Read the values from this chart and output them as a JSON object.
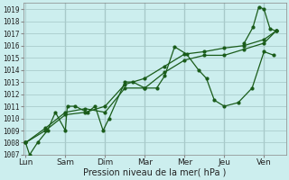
{
  "background_color": "#cceeee",
  "grid_color": "#aacccc",
  "line_color": "#1a5c1a",
  "marker_color": "#1a5c1a",
  "xlabel": "Pression niveau de la mer( hPa )",
  "ylim": [
    1007,
    1019.5
  ],
  "yticks": [
    1007,
    1008,
    1009,
    1010,
    1011,
    1012,
    1013,
    1014,
    1015,
    1016,
    1017,
    1018,
    1019
  ],
  "day_labels": [
    "Lun",
    "Sam",
    "Dim",
    "Mar",
    "Mer",
    "Jeu",
    "Ven"
  ],
  "day_positions": [
    0,
    1,
    2,
    3,
    4,
    5,
    6
  ],
  "series": [
    {
      "x": [
        0.0,
        0.1,
        0.3,
        0.55,
        0.75,
        1.0,
        1.05,
        1.25,
        1.55,
        1.75,
        1.95,
        2.1,
        2.5,
        2.7,
        3.0,
        3.3,
        3.5,
        3.75,
        4.05,
        4.35,
        4.55,
        4.75,
        5.0,
        5.35,
        5.7,
        6.0,
        6.25
      ],
      "y": [
        1008.0,
        1007.0,
        1008.0,
        1009.0,
        1010.5,
        1009.0,
        1011.0,
        1011.0,
        1010.5,
        1011.0,
        1009.0,
        1010.0,
        1013.0,
        1013.0,
        1012.5,
        1012.5,
        1013.5,
        1015.9,
        1015.3,
        1014.0,
        1013.3,
        1011.5,
        1011.0,
        1011.3,
        1012.5,
        1015.5,
        1015.2
      ]
    },
    {
      "x": [
        0.0,
        0.5,
        1.0,
        1.5,
        2.0,
        2.5,
        3.0,
        3.5,
        4.0,
        4.5,
        5.0,
        5.5,
        6.0,
        6.3
      ],
      "y": [
        1008.0,
        1009.2,
        1010.5,
        1010.8,
        1010.5,
        1012.5,
        1012.5,
        1013.8,
        1014.8,
        1015.2,
        1015.2,
        1015.7,
        1016.2,
        1017.2
      ]
    },
    {
      "x": [
        0.0,
        0.5,
        1.0,
        1.5,
        2.0,
        2.5,
        3.0,
        3.5,
        4.0,
        4.5,
        5.0,
        5.5,
        6.0,
        6.3
      ],
      "y": [
        1008.0,
        1009.0,
        1010.3,
        1010.5,
        1011.0,
        1012.8,
        1013.3,
        1014.3,
        1015.3,
        1015.5,
        1015.8,
        1016.0,
        1016.5,
        1017.2
      ]
    },
    {
      "x": [
        5.5,
        5.72,
        5.87,
        6.0,
        6.15,
        6.3
      ],
      "y": [
        1016.2,
        1017.5,
        1019.2,
        1019.0,
        1017.4,
        1017.2
      ]
    }
  ]
}
